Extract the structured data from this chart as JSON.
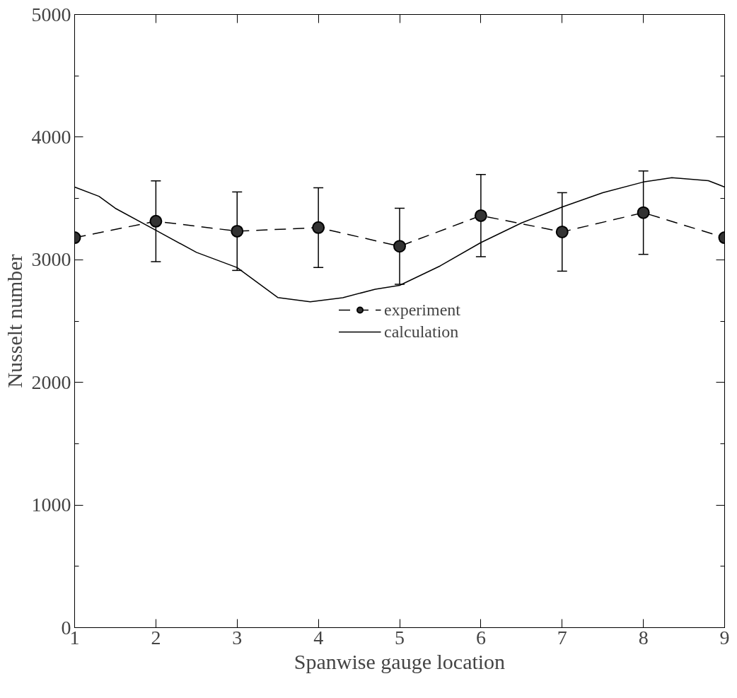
{
  "chart_data": {
    "type": "line",
    "xlabel": "Spanwise gauge location",
    "ylabel": "Nusselt number",
    "xlim": [
      1,
      9
    ],
    "xticks": [
      1,
      2,
      3,
      4,
      5,
      6,
      7,
      8,
      9
    ],
    "ylim": [
      0,
      5000
    ],
    "yticks": [
      0,
      {
        "value": 500,
        "label": null
      },
      1000,
      {
        "value": 1500,
        "label": null
      },
      2000,
      {
        "value": 2500,
        "label": null
      },
      3000,
      {
        "value": 3500,
        "label": null
      },
      4000,
      {
        "value": 4500,
        "label": null
      },
      5000
    ],
    "grid": false,
    "legend": "center",
    "series": [
      {
        "name": "experiment",
        "color": "#000000",
        "marker": "circle",
        "line_style": "dashed",
        "x": [
          1,
          2,
          3,
          4,
          5,
          6,
          7,
          8,
          9
        ],
        "values": [
          3180,
          3314,
          3233,
          3262,
          3110,
          3360,
          3227,
          3384,
          3180
        ],
        "errors": [
          null,
          330,
          320,
          325,
          310,
          335,
          320,
          340,
          null
        ]
      },
      {
        "name": "calculation",
        "color": "#000000",
        "marker": "none",
        "line_style": "solid",
        "x": [
          1,
          1.3,
          1.5,
          2,
          2.5,
          3,
          3.5,
          3.9,
          4.3,
          4.7,
          5,
          5.5,
          6,
          6.5,
          7,
          7.5,
          8,
          8.35,
          8.8,
          9
        ],
        "values": [
          3593,
          3517,
          3420,
          3240,
          3060,
          2936,
          2692,
          2657,
          2690,
          2760,
          2791,
          2950,
          3140,
          3300,
          3430,
          3547,
          3634,
          3669,
          3645,
          3593
        ]
      }
    ]
  }
}
